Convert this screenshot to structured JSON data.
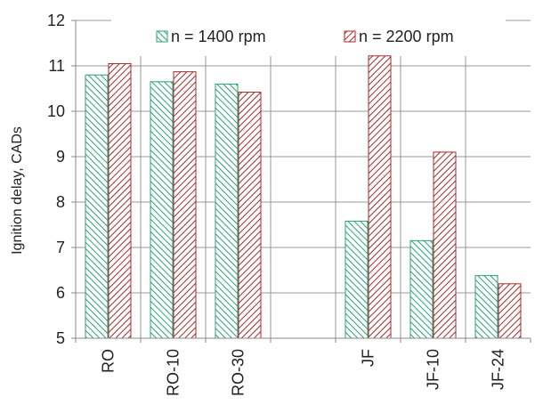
{
  "chart_data": {
    "type": "bar",
    "categories": [
      "RO",
      "RO-10",
      "RO-30",
      "",
      "JF",
      "JF-10",
      "JF-24"
    ],
    "series": [
      {
        "name": "n = 1400 rpm",
        "values": [
          10.8,
          10.65,
          10.6,
          null,
          7.58,
          7.15,
          6.38
        ],
        "color": "#2aa078"
      },
      {
        "name": "n = 2200 rpm",
        "values": [
          11.05,
          10.87,
          10.42,
          null,
          11.22,
          9.1,
          6.2
        ],
        "color": "#a52a2a"
      }
    ],
    "ylabel": "Ignition delay, CADs",
    "ylim": [
      5,
      12
    ],
    "yticks": [
      5,
      6,
      7,
      8,
      9,
      10,
      11,
      12
    ],
    "grid": true,
    "legend_position": "top"
  }
}
